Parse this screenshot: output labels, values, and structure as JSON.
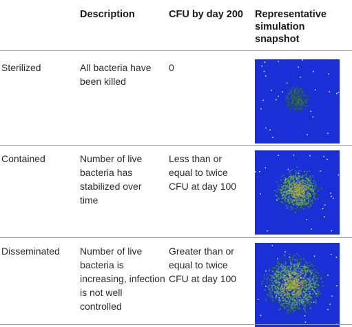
{
  "table": {
    "headers": {
      "description": "Description",
      "cfu": "CFU by day 200",
      "snapshot": "Representative simulation snapshot"
    },
    "rows": [
      {
        "label": "Sterilized",
        "description": "All bacteria have been killed",
        "cfu": "0",
        "snapshot": {
          "background": "#1a2fd6",
          "cluster": "sparse dark",
          "bacteria_fraction": 0.15
        }
      },
      {
        "label": "Contained",
        "description": "Number of live bacteria has stabilized over time",
        "cfu": "Less than or equal to twice CFU at day 100",
        "snapshot": {
          "background": "#1a2fd6",
          "cluster": "medium green",
          "bacteria_fraction": 0.55
        }
      },
      {
        "label": "Disseminated",
        "description": "Number of live bacteria is increasing, infection is not well controlled",
        "cfu": "Greater than or equal to twice CFU at day 100",
        "snapshot": {
          "background": "#1a2fd6",
          "cluster": "large green",
          "bacteria_fraction": 0.9
        }
      }
    ]
  },
  "colors": {
    "background": "#1a2fd6",
    "bacteria_dark": "#2a5a3a",
    "bacteria_green": "#5faa3c",
    "bacteria_yellow": "#b8b050",
    "bacteria_red": "#b05a5a",
    "rule": "#9a9a9a"
  }
}
